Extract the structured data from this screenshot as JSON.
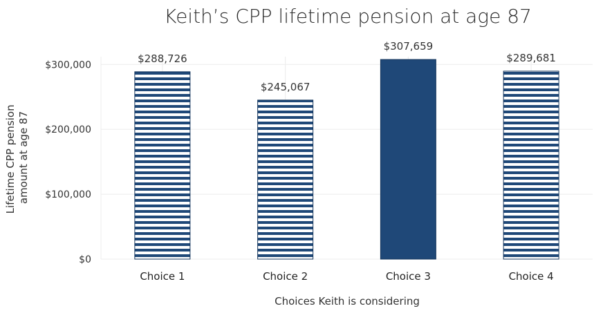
{
  "chart_data": {
    "type": "bar",
    "title": "Keith’s CPP lifetime pension at age 87",
    "xlabel": "Choices Keith is considering",
    "ylabel_lines": [
      "Lifetime CPP pension",
      "amount at age 87"
    ],
    "categories": [
      "Choice 1",
      "Choice 2",
      "Choice 3",
      "Choice 4"
    ],
    "values": [
      288726,
      245067,
      307659,
      289681
    ],
    "data_labels": [
      "$288,726",
      "$245,067",
      "$307,659",
      "$289,681"
    ],
    "fill_styles": [
      "striped",
      "striped",
      "solid",
      "striped"
    ],
    "ylim": [
      0,
      312000
    ],
    "yticks": [
      0,
      100000,
      200000,
      300000
    ],
    "ytick_labels": [
      "$0",
      "$100,000",
      "$200,000",
      "$300,000"
    ],
    "grid": true,
    "colors": {
      "bar": "#1f4878",
      "bar_edge": "#16365c",
      "stripe_bg": "#ffffff"
    }
  }
}
